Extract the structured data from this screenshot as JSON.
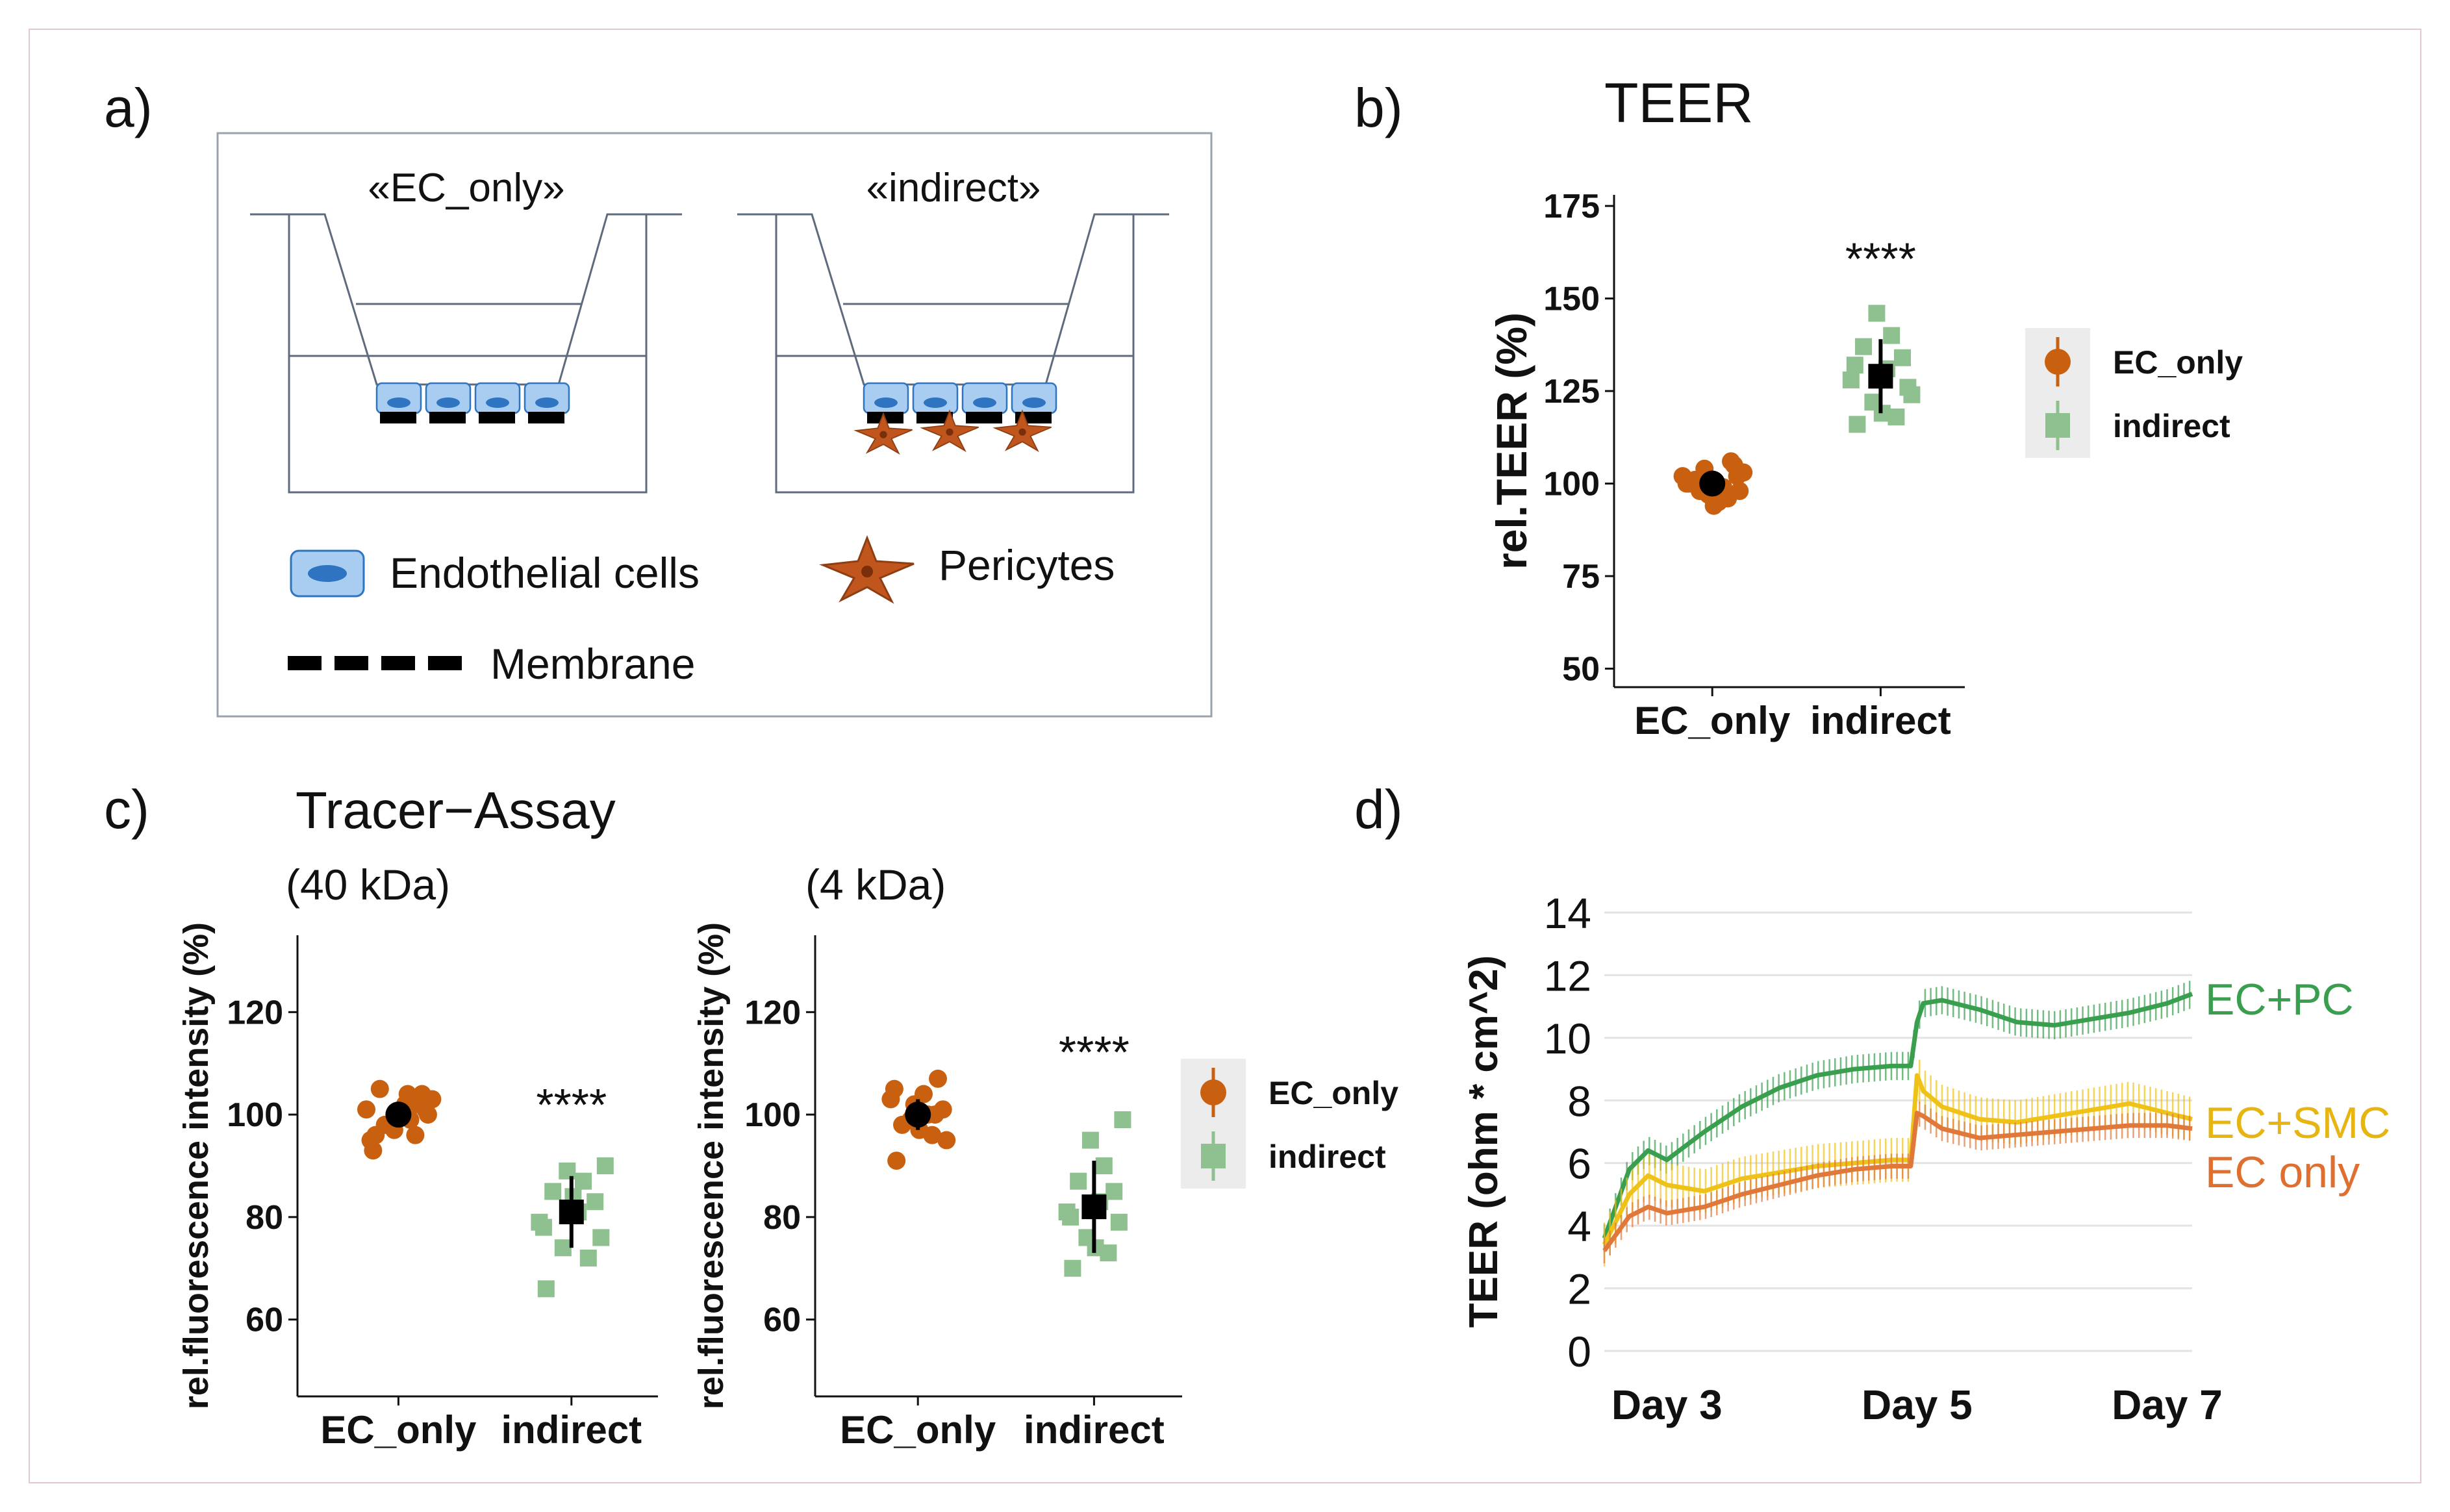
{
  "panel_labels": {
    "a": "a)",
    "b": "b)",
    "c": "c)",
    "d": "d)"
  },
  "diagram": {
    "left_insert_title": "«EC_only»",
    "right_insert_title": "«indirect»",
    "legend": {
      "endothelial": "Endothelial cells",
      "pericytes": "Pericytes",
      "membrane": "Membrane"
    }
  },
  "colors": {
    "ec_only": "#c8600f",
    "indirect": "#8fc08f",
    "mean": "#000000",
    "ec_pc": "#3a9e4f",
    "ec_smc": "#efc21a",
    "ec_only_line": "#e0783a",
    "cell_fill": "#a9cdf0",
    "cell_nucleus": "#2e74c0"
  },
  "chart_data": [
    {
      "id": "teer",
      "type": "scatter",
      "title": "TEER",
      "xlabel": "",
      "ylabel": "rel.TEER (%)",
      "categories": [
        "EC_only",
        "indirect"
      ],
      "ylim": [
        45,
        178
      ],
      "yticks": [
        50,
        75,
        100,
        125,
        150,
        175
      ],
      "significance": "****",
      "legend": [
        "EC_only",
        "indirect"
      ],
      "series": [
        {
          "name": "EC_only",
          "marker": "circle",
          "mean": 100,
          "sd": 3,
          "points": [
            100,
            96,
            104,
            98,
            102,
            95,
            105,
            101,
            99,
            97,
            103,
            100,
            94,
            106,
            98,
            102
          ]
        },
        {
          "name": "indirect",
          "marker": "square",
          "mean": 129,
          "sd": 10,
          "points": [
            116,
            118,
            122,
            126,
            128,
            131,
            134,
            137,
            140,
            146,
            124,
            132,
            119
          ]
        }
      ]
    },
    {
      "id": "tracer40",
      "type": "scatter",
      "title": "Tracer−Assay",
      "subtitle": "(40 kDa)",
      "xlabel": "",
      "ylabel": "rel.fluorescence intensity (%)",
      "categories": [
        "EC_only",
        "indirect"
      ],
      "ylim": [
        45,
        135
      ],
      "yticks": [
        60,
        80,
        100,
        120
      ],
      "significance": "****",
      "series": [
        {
          "name": "EC_only",
          "marker": "circle",
          "mean": 100,
          "sd": 2.5,
          "points": [
            93,
            96,
            98,
            100,
            101,
            102,
            104,
            105,
            99,
            97,
            103,
            95,
            100,
            102,
            98,
            101,
            96,
            104
          ]
        },
        {
          "name": "indirect",
          "marker": "square",
          "mean": 81,
          "sd": 7,
          "points": [
            66,
            72,
            74,
            76,
            79,
            81,
            83,
            85,
            87,
            89,
            90,
            78,
            84
          ]
        }
      ]
    },
    {
      "id": "tracer4",
      "type": "scatter",
      "title": "",
      "subtitle": "(4 kDa)",
      "xlabel": "",
      "ylabel": "rel.fluorescence intensity (%)",
      "categories": [
        "EC_only",
        "indirect"
      ],
      "ylim": [
        45,
        135
      ],
      "yticks": [
        60,
        80,
        100,
        120
      ],
      "significance": "****",
      "legend": [
        "EC_only",
        "indirect"
      ],
      "series": [
        {
          "name": "EC_only",
          "marker": "circle",
          "mean": 100,
          "sd": 3,
          "points": [
            91,
            96,
            99,
            101,
            103,
            104,
            107,
            98,
            100,
            102,
            95,
            105,
            97,
            100
          ]
        },
        {
          "name": "indirect",
          "marker": "square",
          "mean": 82,
          "sd": 9,
          "points": [
            70,
            73,
            76,
            79,
            81,
            83,
            85,
            87,
            90,
            95,
            99,
            80,
            74
          ]
        }
      ]
    },
    {
      "id": "teer_time",
      "type": "line",
      "title": "",
      "xlabel": "",
      "ylabel": "TEER (ohm * cm^2)",
      "ylim": [
        0,
        14
      ],
      "yticks": [
        0,
        2,
        4,
        6,
        8,
        10,
        12,
        14
      ],
      "xlim": [
        2.5,
        7.2
      ],
      "xticks": [
        {
          "value": 3,
          "label": "Day 3"
        },
        {
          "value": 5,
          "label": "Day 5"
        },
        {
          "value": 7,
          "label": "Day 7"
        }
      ],
      "grid": true,
      "series": [
        {
          "name": "EC+PC",
          "color_key": "ec_pc",
          "err": 0.45,
          "x": [
            2.5,
            2.7,
            2.85,
            3.0,
            3.3,
            3.6,
            3.9,
            4.2,
            4.5,
            4.8,
            4.95,
            5.0,
            5.05,
            5.2,
            5.5,
            5.8,
            6.1,
            6.4,
            6.7,
            7.0,
            7.2
          ],
          "y": [
            3.6,
            5.8,
            6.4,
            6.1,
            7.0,
            7.8,
            8.4,
            8.8,
            9.0,
            9.1,
            9.1,
            10.5,
            11.1,
            11.2,
            10.9,
            10.5,
            10.4,
            10.6,
            10.8,
            11.1,
            11.4
          ]
        },
        {
          "name": "EC+SMC",
          "color_key": "ec_smc",
          "err": 0.7,
          "x": [
            2.5,
            2.7,
            2.85,
            3.0,
            3.3,
            3.6,
            3.9,
            4.2,
            4.5,
            4.8,
            4.95,
            5.0,
            5.05,
            5.2,
            5.5,
            5.8,
            6.1,
            6.4,
            6.7,
            7.0,
            7.2
          ],
          "y": [
            3.4,
            5.0,
            5.6,
            5.3,
            5.1,
            5.5,
            5.7,
            5.9,
            6.0,
            6.1,
            6.1,
            8.8,
            8.3,
            7.8,
            7.4,
            7.3,
            7.5,
            7.7,
            7.9,
            7.6,
            7.4
          ]
        },
        {
          "name": "EC only",
          "color_key": "ec_only_line",
          "err": 0.4,
          "x": [
            2.5,
            2.7,
            2.85,
            3.0,
            3.3,
            3.6,
            3.9,
            4.2,
            4.5,
            4.8,
            4.95,
            5.0,
            5.05,
            5.2,
            5.5,
            5.8,
            6.1,
            6.4,
            6.7,
            7.0,
            7.2
          ],
          "y": [
            3.2,
            4.3,
            4.6,
            4.4,
            4.6,
            5.0,
            5.3,
            5.6,
            5.8,
            5.9,
            5.9,
            7.6,
            7.5,
            7.1,
            6.8,
            6.9,
            7.0,
            7.1,
            7.2,
            7.2,
            7.1
          ]
        }
      ]
    }
  ]
}
